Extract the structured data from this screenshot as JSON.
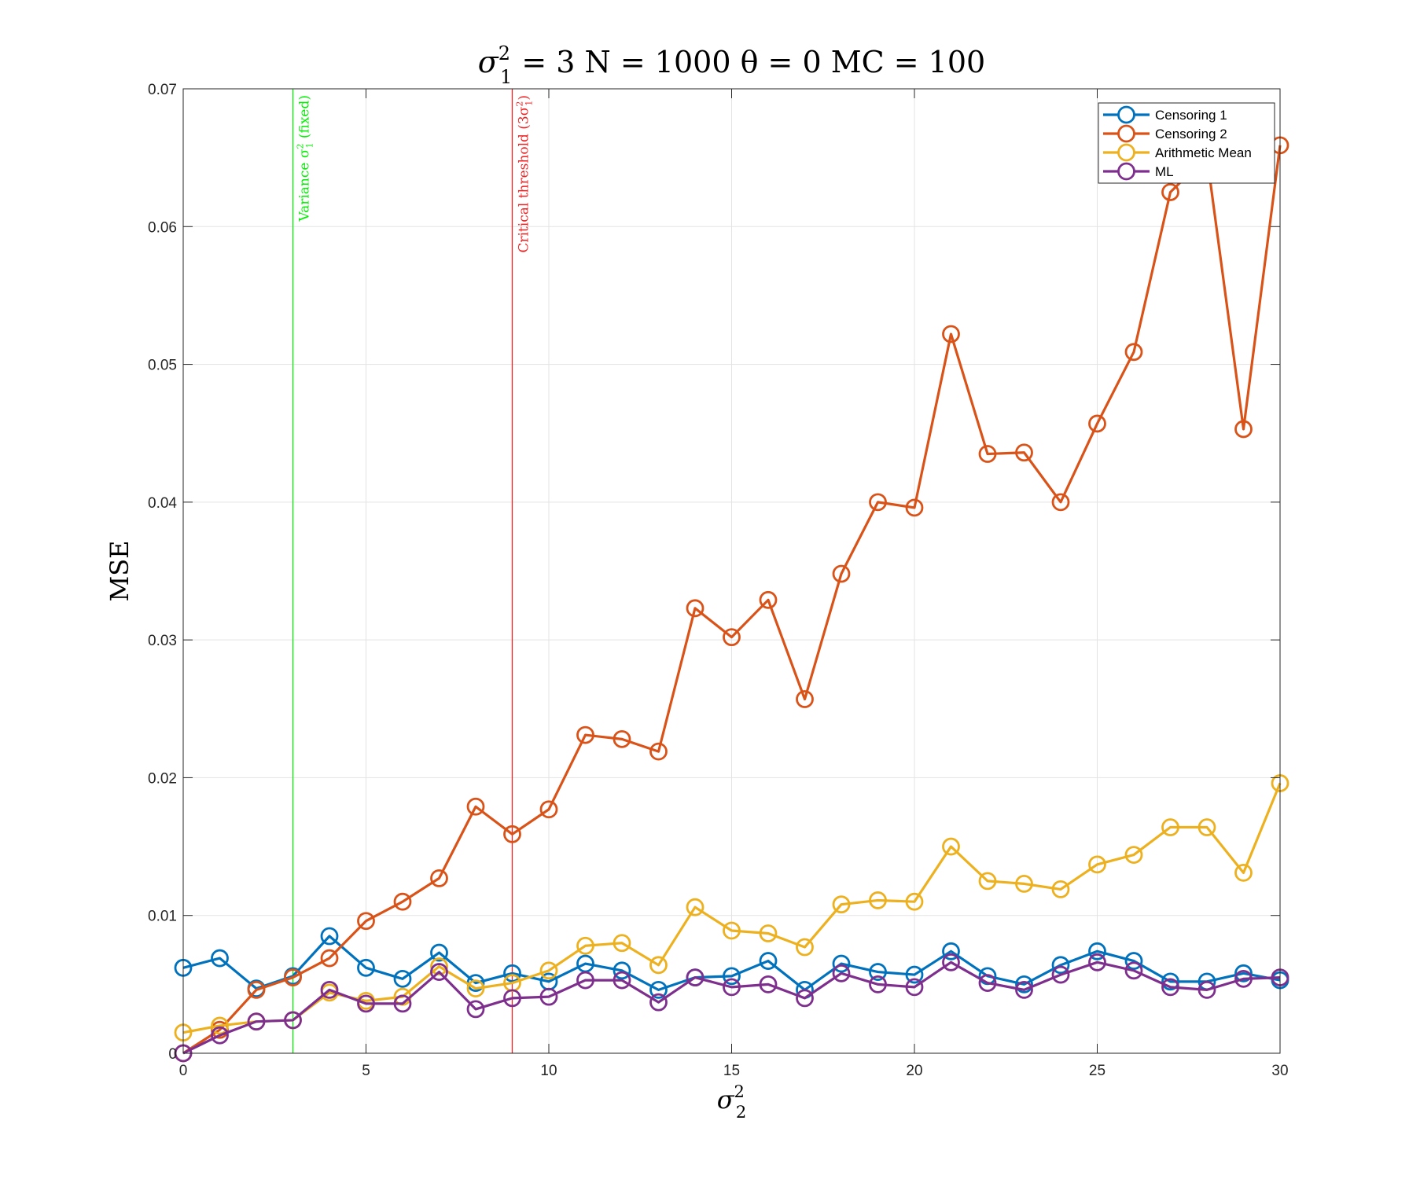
{
  "chart_data": {
    "type": "line",
    "title": {
      "main": "σ",
      "sup": "2",
      "sub": "1",
      "rest": " = 3  N = 1000  θ = 0  MC = 100"
    },
    "xlabel": {
      "main": "σ",
      "sup": "2",
      "sub": "2"
    },
    "ylabel": "MSE",
    "xlim": [
      0,
      30
    ],
    "ylim": [
      0,
      0.07
    ],
    "xticks": [
      0,
      5,
      10,
      15,
      20,
      25,
      30
    ],
    "xtick_labels": [
      "0",
      "5",
      "10",
      "15",
      "20",
      "25",
      "30"
    ],
    "yticks": [
      0,
      0.01,
      0.02,
      0.03,
      0.04,
      0.05,
      0.06,
      0.07
    ],
    "ytick_labels": [
      "0",
      "0.01",
      "0.02",
      "0.03",
      "0.04",
      "0.05",
      "0.06",
      "0.07"
    ],
    "grid": true,
    "legend_position": "top-right",
    "x": [
      0,
      1,
      2,
      3,
      4,
      5,
      6,
      7,
      8,
      9,
      10,
      11,
      12,
      13,
      14,
      15,
      16,
      17,
      18,
      19,
      20,
      21,
      22,
      23,
      24,
      25,
      26,
      27,
      28,
      29,
      30
    ],
    "series": [
      {
        "name": "Censoring 1",
        "color": "#0072BD",
        "values": [
          0.0062,
          0.0069,
          0.0047,
          0.0056,
          0.0085,
          0.0062,
          0.0054,
          0.0073,
          0.0051,
          0.0058,
          0.0052,
          0.0065,
          0.006,
          0.0046,
          0.0055,
          0.0056,
          0.0067,
          0.0046,
          0.0065,
          0.0059,
          0.0057,
          0.0074,
          0.0056,
          0.005,
          0.0064,
          0.0074,
          0.0067,
          0.0052,
          0.0052,
          0.0058,
          0.0053
        ]
      },
      {
        "name": "Censoring 2",
        "color": "#D95319",
        "values": [
          0.0,
          0.0017,
          0.0046,
          0.0055,
          0.0069,
          0.0096,
          0.011,
          0.0127,
          0.0179,
          0.0159,
          0.0177,
          0.0231,
          0.0228,
          0.0219,
          0.0323,
          0.0302,
          0.0329,
          0.0257,
          0.0348,
          0.04,
          0.0396,
          0.0522,
          0.0435,
          0.0436,
          0.04,
          0.0457,
          0.0509,
          0.0625,
          0.0651,
          0.0453,
          0.0659
        ]
      },
      {
        "name": "Arithmetic Mean",
        "color": "#EDB120",
        "values": [
          0.0015,
          0.002,
          0.0023,
          0.0024,
          0.0044,
          0.0038,
          0.0041,
          0.0063,
          0.0047,
          0.0051,
          0.006,
          0.0078,
          0.008,
          0.0064,
          0.0106,
          0.0089,
          0.0087,
          0.0077,
          0.0108,
          0.0111,
          0.011,
          0.015,
          0.0125,
          0.0123,
          0.0119,
          0.0137,
          0.0144,
          0.0164,
          0.0164,
          0.0131,
          0.0196
        ]
      },
      {
        "name": "ML",
        "color": "#7E2F8E",
        "values": [
          0.0,
          0.0013,
          0.0023,
          0.0024,
          0.0046,
          0.0036,
          0.0036,
          0.0059,
          0.0032,
          0.004,
          0.0041,
          0.0053,
          0.0053,
          0.0037,
          0.0055,
          0.0048,
          0.005,
          0.004,
          0.0058,
          0.005,
          0.0048,
          0.0066,
          0.0051,
          0.0046,
          0.0057,
          0.0066,
          0.006,
          0.0048,
          0.0046,
          0.0054,
          0.0055
        ]
      }
    ],
    "reference_lines": [
      {
        "x": 3,
        "color": "#00EE00",
        "label": {
          "pre": "Variance σ",
          "sup": "2",
          "sub": "1",
          "post": " (fixed)"
        }
      },
      {
        "x": 9,
        "color": "#EE2222",
        "label": {
          "pre": "Critical threshold (3σ",
          "sup": "2",
          "sub": "1",
          "post": ")"
        }
      }
    ]
  }
}
